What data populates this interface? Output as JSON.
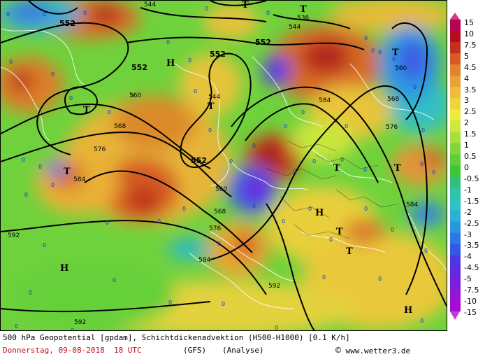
{
  "map": {
    "contour_labels": [
      {
        "value": "552"
      },
      {
        "value": "552"
      },
      {
        "value": "552"
      },
      {
        "value": "552"
      },
      {
        "value": "552"
      },
      {
        "value": "560"
      },
      {
        "value": "560"
      },
      {
        "value": "560"
      },
      {
        "value": "568"
      },
      {
        "value": "568"
      },
      {
        "value": "568"
      },
      {
        "value": "576"
      },
      {
        "value": "576"
      },
      {
        "value": "576"
      },
      {
        "value": "584"
      },
      {
        "value": "584"
      },
      {
        "value": "584"
      },
      {
        "value": "584"
      },
      {
        "value": "592"
      },
      {
        "value": "592"
      },
      {
        "value": "592"
      },
      {
        "value": "544"
      },
      {
        "value": "544"
      },
      {
        "value": "544"
      },
      {
        "value": "536"
      }
    ],
    "pressure_markers": [
      {
        "label": "T"
      },
      {
        "label": "T"
      },
      {
        "label": "T"
      },
      {
        "label": "T"
      },
      {
        "label": "T"
      },
      {
        "label": "T"
      },
      {
        "label": "T"
      },
      {
        "label": "T"
      },
      {
        "label": "T"
      },
      {
        "label": "T"
      },
      {
        "label": "H"
      },
      {
        "label": "H"
      },
      {
        "label": "H"
      },
      {
        "label": "H"
      }
    ],
    "zero_label": "0"
  },
  "colorbar": {
    "labels": [
      "15",
      "10",
      "7.5",
      "5",
      "4.5",
      "4",
      "3.5",
      "3",
      "2.5",
      "2",
      "1.5",
      "1",
      "0.5",
      "0",
      "-0.5",
      "-1",
      "-1.5",
      "-2",
      "-2.5",
      "-3",
      "-3.5",
      "-4",
      "-4.5",
      "-5",
      "-7.5",
      "-10",
      "-15"
    ],
    "colors": [
      "#b5054f",
      "#b60d1e",
      "#c4301e",
      "#d65a25",
      "#e2822d",
      "#e9a235",
      "#eebd3a",
      "#f0d43d",
      "#ecec3e",
      "#cdea3c",
      "#a8e03a",
      "#80d63a",
      "#5fcc38",
      "#3ec63a",
      "#31c078",
      "#2ec4a8",
      "#2bc2c8",
      "#2bb0d8",
      "#2b96e0",
      "#2b7ae4",
      "#3656e6",
      "#4b38e4",
      "#6428e0",
      "#7c1edc",
      "#9614d8",
      "#a80cd4"
    ]
  },
  "footer": {
    "line1": "500 hPa Geopotential [gpdam], Schichtdickenadvektion (H500-H1000) [0.1 K/h]",
    "date": "Donnerstag, 09-08-2018  18 UTC",
    "model": "(GFS)",
    "mode": "(Analyse)",
    "copyright": "www.wetter3.de",
    "copyright_symbol": "©"
  }
}
